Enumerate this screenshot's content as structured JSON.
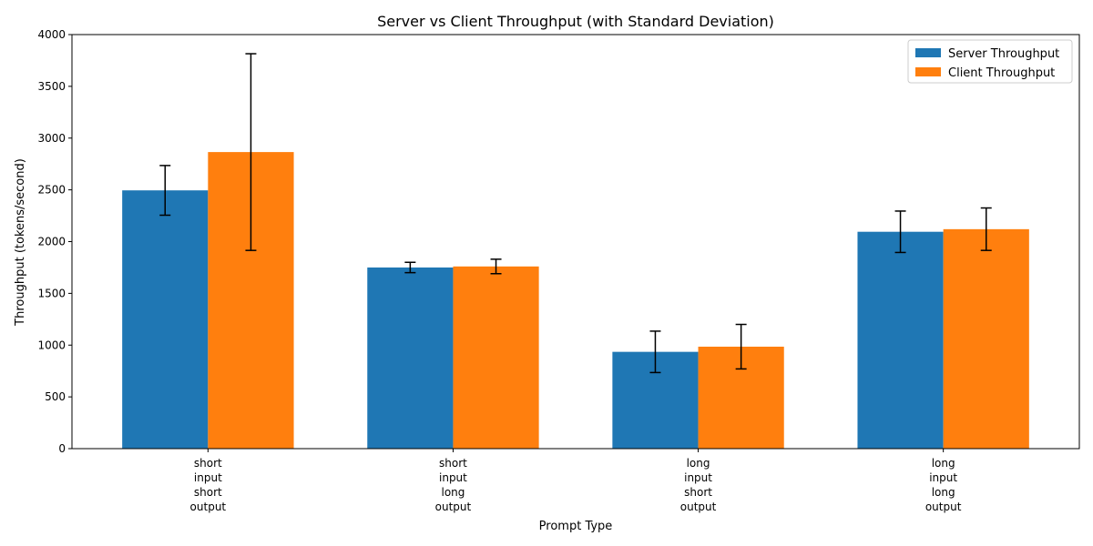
{
  "chart_data": {
    "type": "bar",
    "title": "Server vs Client Throughput (with Standard Deviation)",
    "xlabel": "Prompt Type",
    "ylabel": "Throughput (tokens/second)",
    "ylim": [
      0,
      4000
    ],
    "yticks": [
      0,
      500,
      1000,
      1500,
      2000,
      2500,
      3000,
      3500,
      4000
    ],
    "categories": [
      [
        "short",
        "input",
        "short",
        "output"
      ],
      [
        "short",
        "input",
        "long",
        "output"
      ],
      [
        "long",
        "input",
        "short",
        "output"
      ],
      [
        "long",
        "input",
        "long",
        "output"
      ]
    ],
    "series": [
      {
        "name": "Server Throughput",
        "color": "#1f77b4",
        "values": [
          2495,
          1750,
          935,
          2095
        ],
        "std": [
          240,
          50,
          200,
          200
        ]
      },
      {
        "name": "Client Throughput",
        "color": "#ff7f0e",
        "values": [
          2865,
          1760,
          985,
          2120
        ],
        "std": [
          950,
          70,
          215,
          205
        ]
      }
    ],
    "legend_position": "top-right",
    "grid": false
  }
}
